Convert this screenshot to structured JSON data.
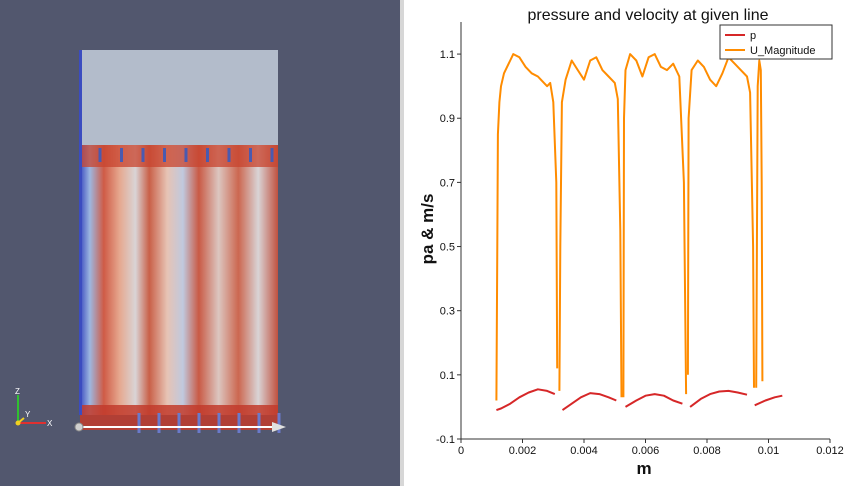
{
  "viewport": {
    "orientation_axes": [
      "X",
      "Y",
      "Z"
    ],
    "colors": {
      "background": "#52576e",
      "high": "#b40426",
      "mid": "#dcdcdc",
      "low": "#3b4cc0",
      "top_region": "#b3bccb"
    }
  },
  "chart_data": {
    "type": "line",
    "title": "pressure and velocity at given line",
    "xlabel": "m",
    "ylabel": "pa & m/s",
    "xlim": [
      0,
      0.012
    ],
    "ylim": [
      -0.1,
      1.2
    ],
    "xticks": [
      "0",
      "0.002",
      "0.004",
      "0.006",
      "0.008",
      "0.01",
      "0.012"
    ],
    "yticks": [
      "-0.1",
      "0.1",
      "0.3",
      "0.5",
      "0.7",
      "0.9",
      "1.1"
    ],
    "xtick_values": [
      0,
      0.002,
      0.004,
      0.006,
      0.008,
      0.01,
      0.012
    ],
    "ytick_values": [
      -0.1,
      0.1,
      0.3,
      0.5,
      0.7,
      0.9,
      1.1
    ],
    "grid": false,
    "legend_position": "top-right",
    "series": [
      {
        "name": "p",
        "color": "#d62728",
        "segments": [
          [
            [
              0.00115,
              -0.01
            ],
            [
              0.0013,
              -0.005
            ],
            [
              0.0016,
              0.01
            ],
            [
              0.0019,
              0.03
            ],
            [
              0.0022,
              0.045
            ],
            [
              0.0025,
              0.055
            ],
            [
              0.0028,
              0.05
            ],
            [
              0.00305,
              0.04
            ]
          ],
          [
            [
              0.0033,
              -0.01
            ],
            [
              0.0036,
              0.01
            ],
            [
              0.0039,
              0.03
            ],
            [
              0.0042,
              0.043
            ],
            [
              0.0045,
              0.04
            ],
            [
              0.0048,
              0.03
            ],
            [
              0.00505,
              0.02
            ]
          ],
          [
            [
              0.00535,
              0.0
            ],
            [
              0.0057,
              0.02
            ],
            [
              0.006,
              0.035
            ],
            [
              0.0063,
              0.04
            ],
            [
              0.0066,
              0.035
            ],
            [
              0.0069,
              0.02
            ],
            [
              0.0072,
              0.01
            ]
          ],
          [
            [
              0.00745,
              0.0
            ],
            [
              0.0078,
              0.025
            ],
            [
              0.0081,
              0.04
            ],
            [
              0.0084,
              0.048
            ],
            [
              0.0087,
              0.05
            ],
            [
              0.009,
              0.045
            ],
            [
              0.0093,
              0.038
            ]
          ],
          [
            [
              0.00955,
              0.005
            ],
            [
              0.0099,
              0.02
            ],
            [
              0.0102,
              0.03
            ],
            [
              0.01045,
              0.035
            ]
          ]
        ]
      },
      {
        "name": "U_Magnitude",
        "color": "#ff8c00",
        "segments": [
          [
            [
              0.00115,
              0.02
            ],
            [
              0.00118,
              0.5
            ],
            [
              0.0012,
              0.85
            ],
            [
              0.00125,
              0.95
            ],
            [
              0.0013,
              1.0
            ],
            [
              0.0014,
              1.04
            ],
            [
              0.0016,
              1.08
            ],
            [
              0.0017,
              1.1
            ],
            [
              0.0019,
              1.09
            ],
            [
              0.0021,
              1.06
            ],
            [
              0.0023,
              1.04
            ],
            [
              0.0025,
              1.03
            ],
            [
              0.0026,
              1.02
            ],
            [
              0.0027,
              1.01
            ],
            [
              0.0028,
              1.0
            ],
            [
              0.0029,
              1.01
            ],
            [
              0.003,
              0.95
            ],
            [
              0.0031,
              0.7
            ],
            [
              0.00313,
              0.12
            ]
          ],
          [
            [
              0.0032,
              0.05
            ],
            [
              0.00323,
              0.5
            ],
            [
              0.00328,
              0.95
            ],
            [
              0.0034,
              1.02
            ],
            [
              0.0036,
              1.08
            ],
            [
              0.0038,
              1.05
            ],
            [
              0.004,
              1.02
            ],
            [
              0.0042,
              1.08
            ],
            [
              0.0044,
              1.09
            ],
            [
              0.0046,
              1.05
            ],
            [
              0.0048,
              1.03
            ],
            [
              0.005,
              1.01
            ],
            [
              0.0051,
              0.96
            ],
            [
              0.00518,
              0.55
            ],
            [
              0.00522,
              0.03
            ]
          ],
          [
            [
              0.00528,
              0.03
            ],
            [
              0.0053,
              0.9
            ],
            [
              0.00535,
              1.05
            ],
            [
              0.0055,
              1.1
            ],
            [
              0.0057,
              1.08
            ],
            [
              0.0059,
              1.03
            ],
            [
              0.0061,
              1.09
            ],
            [
              0.0063,
              1.1
            ],
            [
              0.0065,
              1.06
            ],
            [
              0.0067,
              1.05
            ],
            [
              0.0069,
              1.07
            ],
            [
              0.0071,
              1.03
            ],
            [
              0.00725,
              0.7
            ],
            [
              0.00732,
              0.04
            ]
          ],
          [
            [
              0.00738,
              0.1
            ],
            [
              0.0074,
              0.9
            ],
            [
              0.0075,
              1.05
            ],
            [
              0.0077,
              1.08
            ],
            [
              0.0079,
              1.06
            ],
            [
              0.0081,
              1.02
            ],
            [
              0.0083,
              1.0
            ],
            [
              0.0085,
              1.04
            ],
            [
              0.0087,
              1.09
            ],
            [
              0.0089,
              1.07
            ],
            [
              0.0091,
              1.05
            ],
            [
              0.0093,
              1.03
            ],
            [
              0.0094,
              0.98
            ],
            [
              0.0095,
              0.5
            ],
            [
              0.00953,
              0.06
            ]
          ],
          [
            [
              0.0096,
              0.06
            ],
            [
              0.00965,
              1.0
            ],
            [
              0.0097,
              1.08
            ],
            [
              0.00975,
              1.05
            ],
            [
              0.00978,
              0.7
            ],
            [
              0.0098,
              0.08
            ]
          ]
        ]
      }
    ]
  }
}
